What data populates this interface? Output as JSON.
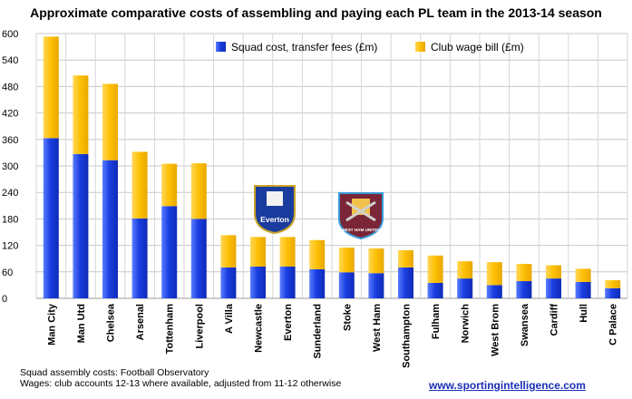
{
  "chart_data": {
    "type": "bar",
    "stacked": true,
    "title": "Approximate comparative costs of assembling and paying each PL team in the 2013-14 season",
    "xlabel": "",
    "ylabel": "",
    "ylim": [
      0,
      600
    ],
    "yticks": [
      0,
      60,
      120,
      180,
      240,
      300,
      360,
      420,
      480,
      540,
      600
    ],
    "grid": true,
    "legend_position": "top-right",
    "categories": [
      "Man City",
      "Man Utd",
      "Chelsea",
      "Arsenal",
      "Tottenham",
      "Liverpool",
      "A Villa",
      "Newcastle",
      "Everton",
      "Sunderland",
      "Stoke",
      "West Ham",
      "Southampton",
      "Fulham",
      "Norwich",
      "West Brom",
      "Swansea",
      "Cardiff",
      "Hull",
      "C Palace"
    ],
    "series": [
      {
        "name": "Squad cost, transfer fees (£m)",
        "color": "#1a3fe0",
        "values": [
          363,
          327,
          313,
          181,
          209,
          180,
          70,
          72,
          72,
          66,
          59,
          57,
          70,
          35,
          45,
          30,
          39,
          45,
          37,
          23
        ]
      },
      {
        "name": "Club wage bill (£m)",
        "color": "#ffc107",
        "values": [
          230,
          178,
          173,
          151,
          96,
          126,
          73,
          67,
          67,
          66,
          56,
          56,
          39,
          62,
          39,
          52,
          39,
          30,
          30,
          18
        ]
      }
    ],
    "annotations": {
      "logo_1": "Everton",
      "logo_2": "WEST HAM UNITED"
    }
  },
  "footer": {
    "source_line_1": "Squad assembly costs: Football Observatory",
    "source_line_2": "Wages: club accounts 12-13 where available, adjusted from 11-12 otherwise",
    "website": "www.sportingintelligence.com"
  }
}
